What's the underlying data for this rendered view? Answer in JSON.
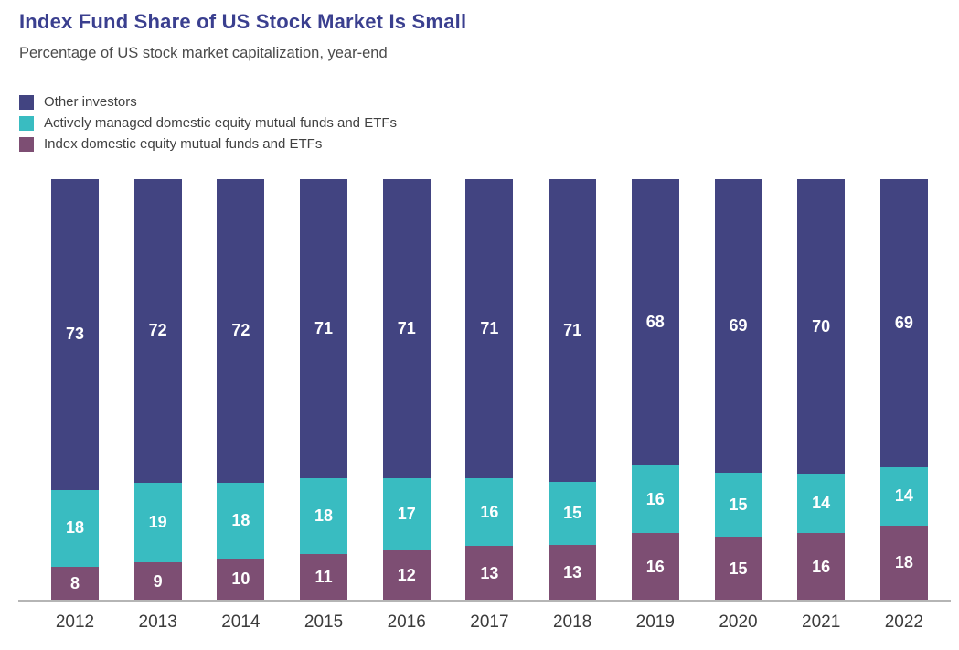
{
  "header": {
    "title": "Index Fund Share of US Stock Market Is Small",
    "subtitle": "Percentage of US stock market capitalization, year-end"
  },
  "legend": [
    {
      "label": "Other investors",
      "color": "#424481"
    },
    {
      "label": "Actively managed domestic equity mutual funds and ETFs",
      "color": "#39bcc1"
    },
    {
      "label": "Index domestic equity mutual funds and ETFs",
      "color": "#7d4e73"
    }
  ],
  "chart_data": {
    "type": "bar",
    "stacked": true,
    "title": "Index Fund Share of US Stock Market Is Small",
    "subtitle": "Percentage of US stock market capitalization, year-end",
    "xlabel": "",
    "ylabel": "",
    "ylim": [
      0,
      100
    ],
    "grid": false,
    "legend_position": "top-left",
    "value_labels": true,
    "categories": [
      "2012",
      "2013",
      "2014",
      "2015",
      "2016",
      "2017",
      "2018",
      "2019",
      "2020",
      "2021",
      "2022"
    ],
    "series": [
      {
        "name": "Other investors",
        "color": "#424481",
        "values": [
          73,
          72,
          72,
          71,
          71,
          71,
          71,
          68,
          69,
          70,
          69
        ]
      },
      {
        "name": "Actively managed domestic equity mutual funds and ETFs",
        "color": "#39bcc1",
        "values": [
          18,
          19,
          18,
          18,
          17,
          16,
          15,
          16,
          15,
          14,
          14
        ]
      },
      {
        "name": "Index domestic equity mutual funds and ETFs",
        "color": "#7d4e73",
        "values": [
          8,
          9,
          10,
          11,
          12,
          13,
          13,
          16,
          15,
          16,
          18
        ]
      }
    ]
  },
  "colors": {
    "title_text": "#3a3f8f",
    "subtitle_text": "#4b4b4b",
    "legend_text": "#414141",
    "tick_text": "#3b3b3b",
    "axis_line": "#b5b5b5",
    "value_label_text": "#ffffff"
  }
}
